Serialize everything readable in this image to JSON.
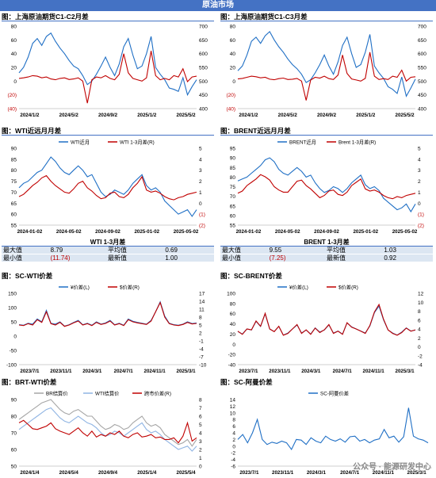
{
  "banner": "原油市场",
  "watermark": "公众号 · 能源研发中心",
  "panels": [
    {
      "title": "图：上海原油期货C1-C2月差"
    },
    {
      "title": "图：上海原油期货C1-C3月差"
    },
    {
      "title": "图：WTI近远月月差"
    },
    {
      "title": "图：BRENT近远月月差"
    },
    {
      "title": "图：SC-WTI价差"
    },
    {
      "title": "图：SC-BRENT价差"
    },
    {
      "title": "图：BRT-WTI价差"
    },
    {
      "title": "图：SC-阿曼价差"
    }
  ],
  "stats": [
    {
      "title": "WTI 1-3月差",
      "max_label": "最大值",
      "max": "8.79",
      "avg_label": "平均值",
      "avg": "0.69",
      "min_label": "最小值",
      "min": "(11.74)",
      "last_label": "最新值",
      "last": "1.00"
    },
    {
      "title": "BRENT 1-3月差",
      "max_label": "最大值",
      "max": "9.55",
      "avg_label": "平均值",
      "avg": "1.03",
      "min_label": "最小值",
      "min": "(7.25)",
      "last_label": "最新值",
      "last": "0.92"
    }
  ],
  "colors": {
    "blue": "#1f6fc5",
    "red": "#c00000",
    "lightblue": "#8fb4e3",
    "gray": "#a6a6a6",
    "accent": "#4472c4"
  },
  "chart_data": [
    {
      "type": "line",
      "x_ticks": [
        "2024/1/2",
        "2024/5/2",
        "2024/9/2",
        "2025/1/2",
        "2025/5/2"
      ],
      "ylim_left": [
        -40,
        80
      ],
      "yticks_left": [
        "80",
        "60",
        "40",
        "20",
        "0",
        "(20)",
        "(40)"
      ],
      "ylim_right": [
        400,
        700
      ],
      "yticks_right": [
        "700",
        "650",
        "600",
        "550",
        "500",
        "450",
        "400"
      ],
      "series": [
        {
          "axis": "left",
          "color": "blue",
          "values": [
            12,
            20,
            35,
            55,
            62,
            52,
            65,
            70,
            58,
            48,
            40,
            30,
            22,
            18,
            8,
            -5,
            0,
            10,
            22,
            35,
            20,
            8,
            25,
            50,
            62,
            38,
            18,
            22,
            40,
            65,
            20,
            10,
            2,
            -10,
            -12,
            -15,
            5,
            -20,
            -8,
            2
          ]
        },
        {
          "axis": "right",
          "color": "red",
          "values": [
            510,
            512,
            515,
            520,
            518,
            512,
            515,
            508,
            505,
            510,
            512,
            506,
            508,
            512,
            500,
            420,
            505,
            515,
            512,
            520,
            510,
            505,
            525,
            600,
            530,
            510,
            505,
            500,
            512,
            610,
            520,
            505,
            510,
            505,
            520,
            515,
            545,
            498,
            515,
            518
          ]
        }
      ]
    },
    {
      "type": "line",
      "x_ticks": [
        "2024/1/2",
        "2024/5/2",
        "2024/9/2",
        "2025/1/2",
        "2025/5/2"
      ],
      "ylim_left": [
        -40,
        80
      ],
      "yticks_left": [
        "80",
        "60",
        "40",
        "20",
        "0",
        "(20)",
        "(40)"
      ],
      "ylim_right": [
        400,
        700
      ],
      "yticks_right": [
        "700",
        "650",
        "600",
        "550",
        "500",
        "450",
        "400"
      ],
      "series": [
        {
          "axis": "left",
          "color": "blue",
          "values": [
            15,
            22,
            38,
            58,
            64,
            55,
            66,
            72,
            60,
            50,
            42,
            32,
            24,
            18,
            10,
            -2,
            2,
            12,
            24,
            38,
            22,
            10,
            28,
            52,
            64,
            40,
            20,
            24,
            42,
            68,
            22,
            12,
            4,
            -8,
            -12,
            -18,
            6,
            -22,
            -10,
            3
          ]
        },
        {
          "axis": "right",
          "color": "red",
          "values": [
            508,
            510,
            514,
            518,
            516,
            512,
            514,
            507,
            505,
            509,
            511,
            506,
            507,
            510,
            500,
            430,
            504,
            514,
            511,
            518,
            509,
            506,
            522,
            595,
            528,
            508,
            504,
            500,
            510,
            605,
            518,
            506,
            509,
            506,
            518,
            514,
            540,
            500,
            514,
            516
          ]
        }
      ]
    },
    {
      "type": "line",
      "x_ticks": [
        "2024-01-02",
        "2024-05-02",
        "2024-09-02",
        "2025-01-02",
        "2025-05-02"
      ],
      "ylim_left": [
        55,
        90
      ],
      "yticks_left": [
        "90",
        "85",
        "80",
        "75",
        "70",
        "65",
        "60",
        "55"
      ],
      "ylim_right": [
        -2,
        5
      ],
      "yticks_right": [
        "5",
        "4",
        "3",
        "2",
        "1",
        "0",
        "(1)",
        "(2)"
      ],
      "legend": [
        "WTI近月",
        "WTI 1-3月差(R)"
      ],
      "series": [
        {
          "name": "WTI近月",
          "axis": "left",
          "color": "blue",
          "values": [
            72,
            74,
            75,
            77,
            79,
            80,
            83,
            86,
            84,
            81,
            79,
            78,
            80,
            82,
            80,
            77,
            78,
            74,
            70,
            68,
            69,
            71,
            70,
            69,
            71,
            74,
            76,
            78,
            73,
            71,
            72,
            70,
            66,
            64,
            62,
            60,
            61,
            62,
            59,
            62
          ]
        },
        {
          "name": "WTI 1-3月差(R)",
          "axis": "right",
          "color": "red",
          "values": [
            0.6,
            0.8,
            1.2,
            1.6,
            1.9,
            2.3,
            2.5,
            2.0,
            1.6,
            1.3,
            1.0,
            0.9,
            1.3,
            1.8,
            2.0,
            1.4,
            1.1,
            0.7,
            0.4,
            0.5,
            0.9,
            1.0,
            0.6,
            0.5,
            0.8,
            1.4,
            1.8,
            2.4,
            1.2,
            1.0,
            1.1,
            0.9,
            0.6,
            0.4,
            0.3,
            0.5,
            0.6,
            0.8,
            0.9,
            1.0
          ]
        }
      ]
    },
    {
      "type": "line",
      "x_ticks": [
        "2024-01-02",
        "2024-05-02",
        "2024-09-02",
        "2025-01-02",
        "2025-05-02"
      ],
      "ylim_left": [
        55,
        95
      ],
      "yticks_left": [
        "95",
        "90",
        "85",
        "80",
        "75",
        "70",
        "65",
        "60",
        "55"
      ],
      "ylim_right": [
        -2,
        5
      ],
      "yticks_right": [
        "5",
        "4",
        "3",
        "2",
        "1",
        "0",
        "(1)",
        "(2)"
      ],
      "legend": [
        "BRENT近月",
        "Brent 1-3月差(R)"
      ],
      "series": [
        {
          "name": "BRENT近月",
          "axis": "left",
          "color": "blue",
          "values": [
            78,
            79,
            80,
            82,
            84,
            86,
            89,
            90,
            88,
            84,
            82,
            81,
            83,
            85,
            83,
            80,
            81,
            77,
            74,
            72,
            73,
            75,
            74,
            72,
            74,
            77,
            79,
            81,
            76,
            74,
            75,
            73,
            69,
            67,
            65,
            63,
            64,
            66,
            62,
            66
          ]
        },
        {
          "name": "Brent 1-3月差(R)",
          "axis": "right",
          "color": "red",
          "values": [
            0.9,
            1.1,
            1.6,
            1.9,
            2.2,
            2.6,
            2.4,
            2.1,
            1.5,
            1.2,
            1.0,
            1.0,
            1.5,
            2.0,
            2.1,
            1.6,
            1.3,
            0.9,
            0.5,
            0.7,
            1.1,
            1.2,
            0.8,
            0.7,
            1.0,
            1.6,
            1.9,
            2.2,
            1.3,
            1.1,
            1.2,
            1.0,
            0.7,
            0.5,
            0.4,
            0.6,
            0.5,
            0.7,
            0.8,
            0.9
          ]
        }
      ]
    },
    {
      "type": "line",
      "x_ticks": [
        "2023/7/1",
        "2023/11/1",
        "2024/3/1",
        "2024/7/1",
        "2024/11/1",
        "2025/3/1"
      ],
      "ylim_left": [
        -100,
        150
      ],
      "yticks_left": [
        "150",
        "100",
        "50",
        "0",
        "-50",
        "-100"
      ],
      "ylim_right": [
        -10,
        17
      ],
      "yticks_right": [
        "17",
        "14",
        "11",
        "8",
        "5",
        "2",
        "-1",
        "-4",
        "-7",
        "-10"
      ],
      "legend": [
        "¥价差(L)",
        "$价差(R)"
      ],
      "series": [
        {
          "name": "¥价差(L)",
          "axis": "left",
          "color": "blue",
          "values": [
            40,
            38,
            45,
            42,
            60,
            50,
            90,
            45,
            42,
            50,
            35,
            40,
            48,
            55,
            40,
            45,
            38,
            50,
            42,
            46,
            55,
            40,
            45,
            38,
            60,
            52,
            48,
            45,
            42,
            55,
            85,
            120,
            70,
            45,
            40,
            38,
            42,
            50,
            44,
            46
          ]
        },
        {
          "name": "$价差(R)",
          "axis": "right",
          "color": "red",
          "values": [
            5,
            4.8,
            5.5,
            5,
            7,
            6,
            10,
            5.5,
            5,
            6,
            4.5,
            5,
            5.8,
            6.5,
            5,
            5.5,
            4.8,
            6,
            5.2,
            5.6,
            6.5,
            5,
            5.5,
            4.8,
            7,
            6.2,
            5.8,
            5.5,
            5.2,
            6.5,
            10,
            13.5,
            8,
            5.5,
            5,
            4.8,
            5.2,
            6,
            5.4,
            5.6
          ]
        }
      ]
    },
    {
      "type": "line",
      "x_ticks": [
        "2023/7/1",
        "2023/11/1",
        "2024/3/1",
        "2024/7/1",
        "2024/11/1",
        "2025/3/1"
      ],
      "ylim_left": [
        -40,
        100
      ],
      "yticks_left": [
        "100",
        "80",
        "60",
        "40",
        "20",
        "0",
        "-20",
        "-40"
      ],
      "ylim_right": [
        -4,
        12
      ],
      "yticks_right": [
        "12",
        "10",
        "8",
        "6",
        "4",
        "2",
        "0",
        "-2",
        "-4"
      ],
      "legend": [
        "¥价差(L)",
        "$价差(R)"
      ],
      "series": [
        {
          "name": "¥价差(L)",
          "axis": "left",
          "color": "blue",
          "values": [
            25,
            20,
            30,
            28,
            45,
            35,
            60,
            30,
            25,
            35,
            18,
            22,
            30,
            38,
            22,
            28,
            20,
            32,
            24,
            28,
            38,
            22,
            26,
            20,
            42,
            34,
            30,
            26,
            22,
            36,
            62,
            75,
            48,
            28,
            22,
            18,
            24,
            32,
            26,
            28
          ]
        },
        {
          "name": "$价差(R)",
          "axis": "right",
          "color": "red",
          "values": [
            3.5,
            2.8,
            4,
            3.8,
            5.8,
            4.6,
            7.5,
            4,
            3.4,
            4.6,
            2.6,
            3,
            4,
            5,
            3,
            3.8,
            2.8,
            4.2,
            3.2,
            3.8,
            5,
            3,
            3.5,
            2.8,
            5.4,
            4.4,
            4,
            3.5,
            3,
            4.8,
            7.8,
            9.5,
            6.2,
            3.8,
            3,
            2.6,
            3.2,
            4.2,
            3.5,
            3.8
          ]
        }
      ]
    },
    {
      "type": "line",
      "x_ticks": [
        "2024/1/4",
        "2024/5/4",
        "2024/9/4",
        "2025/1/4",
        "2025/5/4"
      ],
      "ylim_left": [
        50,
        90
      ],
      "yticks_left": [
        "90",
        "80",
        "70",
        "60",
        "50"
      ],
      "ylim_right": [
        0,
        8
      ],
      "yticks_right": [
        "8",
        "7",
        "6",
        "5",
        "4",
        "3",
        "2",
        "1",
        "0"
      ],
      "legend": [
        "BR结算价",
        "WTI结算价",
        "跨市价差(R)"
      ],
      "series": [
        {
          "name": "BR结算价",
          "axis": "left",
          "color": "gray",
          "values": [
            78,
            80,
            82,
            84,
            86,
            88,
            89,
            90,
            87,
            84,
            82,
            81,
            83,
            84,
            82,
            80,
            80,
            77,
            74,
            72,
            73,
            75,
            74,
            72,
            73,
            76,
            78,
            80,
            76,
            74,
            75,
            73,
            69,
            67,
            65,
            63,
            64,
            66,
            62,
            66
          ]
        },
        {
          "name": "WTI结算价",
          "axis": "left",
          "color": "lightblue",
          "values": [
            72,
            74,
            76,
            78,
            80,
            82,
            84,
            85,
            82,
            79,
            77,
            76,
            78,
            80,
            78,
            76,
            75,
            73,
            70,
            68,
            69,
            71,
            70,
            68,
            70,
            72,
            74,
            76,
            72,
            70,
            71,
            69,
            66,
            64,
            62,
            60,
            61,
            62,
            59,
            62
          ]
        },
        {
          "name": "跨市价差(R)",
          "axis": "right",
          "color": "red",
          "values": [
            5.2,
            5.5,
            5,
            4.5,
            4.4,
            4.6,
            4.8,
            5.2,
            4.5,
            4.2,
            4,
            3.8,
            4.2,
            4.6,
            4,
            3.6,
            4.2,
            3.5,
            3.8,
            3.6,
            4,
            3.8,
            4.2,
            3.6,
            3.4,
            3.8,
            4,
            3.5,
            3.6,
            3.8,
            3.4,
            3.5,
            3.2,
            3.2,
            3.4,
            2.8,
            3.6,
            5.2,
            3,
            3.4
          ]
        }
      ]
    },
    {
      "type": "line",
      "x_ticks": [
        "2023/7/1",
        "2023/11/1",
        "2024/3/1",
        "2024/7/1",
        "2024/11/1",
        "2025/3/1"
      ],
      "ylim_left": [
        -6,
        14
      ],
      "yticks_left": [
        "14",
        "12",
        "10",
        "8",
        "6",
        "4",
        "2",
        "0",
        "-2",
        "-4",
        "-6"
      ],
      "legend": [
        "SC-阿曼价差"
      ],
      "series": [
        {
          "name": "SC-阿曼价差",
          "axis": "left",
          "color": "blue",
          "values": [
            2,
            3.5,
            1,
            4,
            8,
            2,
            0.5,
            1.2,
            0.8,
            1.5,
            1,
            -1,
            2,
            1.8,
            0.5,
            2.5,
            1.5,
            1,
            3,
            2,
            1.5,
            2.2,
            1.2,
            2.8,
            3,
            1.5,
            2,
            1,
            1.8,
            2.2,
            5,
            2.5,
            3,
            1.2,
            2.8,
            11.5,
            3,
            2.2,
            1.8,
            1
          ]
        }
      ]
    }
  ]
}
